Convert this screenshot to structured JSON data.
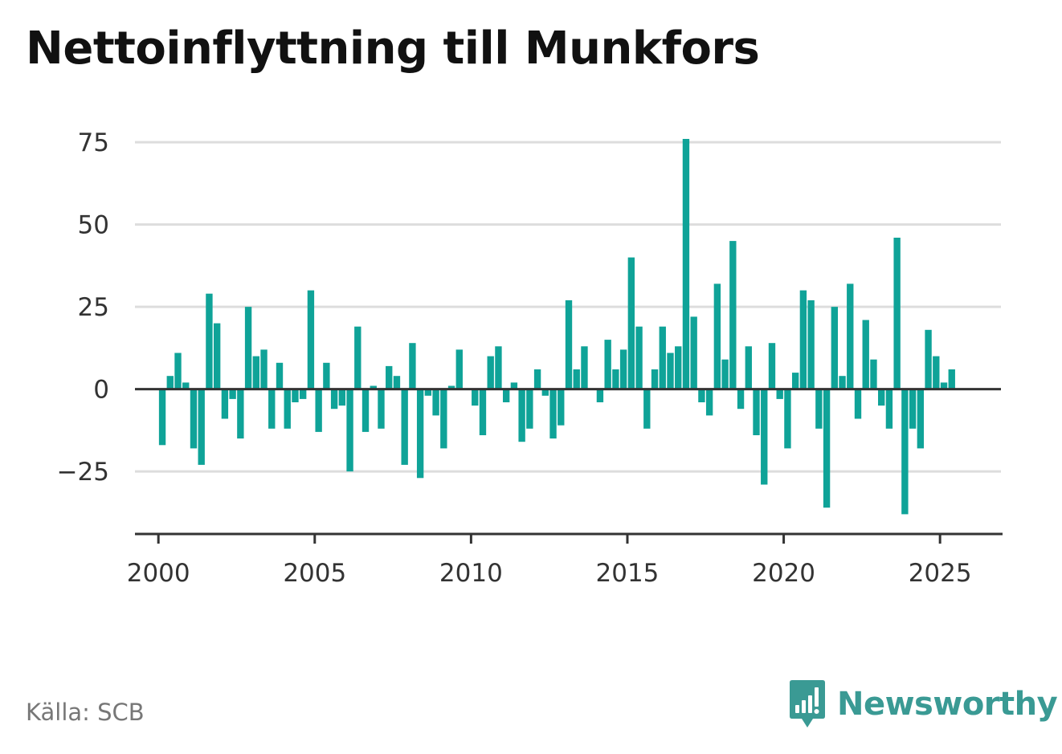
{
  "title": "Nettoinflyttning till Munkfors",
  "source": "Källa: SCB",
  "brand": {
    "name": "Newsworthy",
    "icon": "newsworthy-logo-icon"
  },
  "colors": {
    "bar": "#0fa398",
    "grid": "#dddddd",
    "axis": "#333333",
    "brand": "#3a9a94"
  },
  "chart_data": {
    "type": "bar",
    "title": "Nettoinflyttning till Munkfors",
    "xlabel": "",
    "ylabel": "",
    "grid": true,
    "ylim": [
      -44,
      76
    ],
    "xlim": [
      1999.25,
      2027.0
    ],
    "yticks": [
      75,
      50,
      25,
      0,
      -25
    ],
    "ytick_labels": [
      "75",
      "50",
      "25",
      "0",
      "−25"
    ],
    "xticks": [
      2000,
      2005,
      2010,
      2015,
      2020,
      2025
    ],
    "xtick_labels": [
      "2000",
      "2005",
      "2010",
      "2015",
      "2020",
      "2025"
    ],
    "x_start": 2000.125,
    "x_step": 0.25,
    "values": [
      -17,
      4,
      11,
      2,
      -18,
      -23,
      29,
      20,
      -9,
      -3,
      -15,
      25,
      10,
      12,
      -12,
      8,
      -12,
      -4,
      -3,
      30,
      -13,
      8,
      -6,
      -5,
      -25,
      19,
      -13,
      1,
      -12,
      7,
      4,
      -23,
      14,
      -27,
      -2,
      -8,
      -18,
      1,
      12,
      0,
      -5,
      -14,
      10,
      13,
      -4,
      2,
      -16,
      -12,
      6,
      -2,
      -15,
      -11,
      27,
      6,
      13,
      0,
      -4,
      15,
      6,
      12,
      40,
      19,
      -12,
      6,
      19,
      11,
      13,
      76,
      22,
      -4,
      -8,
      32,
      9,
      45,
      -6,
      13,
      -14,
      -29,
      14,
      -3,
      -18,
      5,
      30,
      27,
      -12,
      -36,
      25,
      4,
      32,
      -9,
      21,
      9,
      -5,
      -12,
      46,
      -38,
      -12,
      -18,
      18,
      10,
      2,
      6
    ]
  }
}
